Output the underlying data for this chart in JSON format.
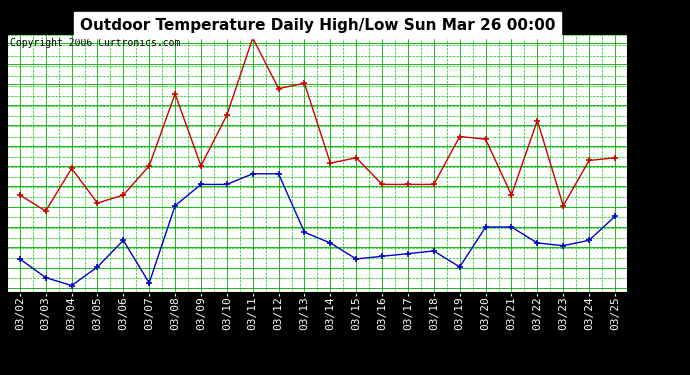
{
  "title": "Outdoor Temperature Daily High/Low Sun Mar 26 00:00",
  "copyright": "Copyright 2006 Curtronics.com",
  "x_labels": [
    "03/02",
    "03/03",
    "03/04",
    "03/05",
    "03/06",
    "03/07",
    "03/08",
    "03/09",
    "03/10",
    "03/11",
    "03/12",
    "03/13",
    "03/14",
    "03/15",
    "03/16",
    "03/17",
    "03/18",
    "03/19",
    "03/20",
    "03/21",
    "03/22",
    "03/23",
    "03/24",
    "03/25"
  ],
  "high_temps": [
    35.5,
    32.5,
    40.5,
    34.0,
    35.5,
    41.0,
    54.5,
    41.0,
    50.5,
    65.0,
    55.5,
    56.5,
    41.5,
    42.5,
    37.5,
    37.5,
    37.5,
    46.5,
    46.0,
    35.5,
    49.5,
    33.5,
    42.0,
    42.5
  ],
  "low_temps": [
    23.5,
    20.0,
    18.5,
    22.0,
    27.0,
    19.0,
    33.5,
    37.5,
    37.5,
    39.5,
    39.5,
    28.5,
    26.5,
    23.5,
    24.0,
    24.5,
    25.0,
    22.0,
    29.5,
    29.5,
    26.5,
    26.0,
    27.0,
    31.5
  ],
  "high_color": "#cc0000",
  "low_color": "#0000cc",
  "yticks": [
    18.0,
    21.8,
    25.7,
    29.5,
    33.3,
    37.2,
    41.0,
    44.8,
    48.7,
    52.5,
    56.3,
    60.2,
    64.0
  ],
  "ylim": [
    17.2,
    65.8
  ],
  "bg_color": "#000000",
  "plot_bg_color": "#ffffff",
  "grid_color_major": "#00aa00",
  "grid_color_minor": "#00cc00",
  "title_fontsize": 11,
  "tick_fontsize": 8,
  "copyright_fontsize": 7
}
